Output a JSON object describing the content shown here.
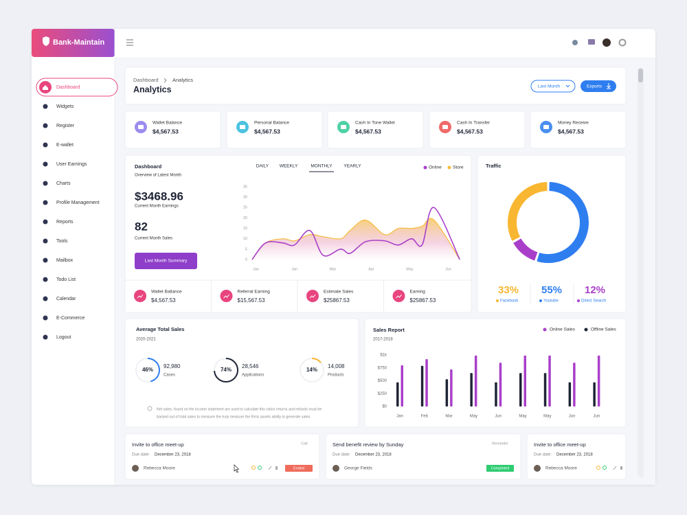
{
  "brand": "Bank-Maintain",
  "sidebar": [
    "Dashboard",
    "Widgets",
    "Register",
    "E-wallet",
    "User Earnings",
    "Charts",
    "Profile Management",
    "Reports",
    "Tools",
    "Mailbox",
    "Todo List",
    "Calendar",
    "E-Commerce",
    "Logout"
  ],
  "breadcrumb": [
    "Dashboard",
    "Analytics"
  ],
  "page_title": "Analytics",
  "buttons": [
    "Last Month",
    "Exports"
  ],
  "stat_cards": [
    {
      "label": "Wallet Balance",
      "value": "$4,567.53"
    },
    {
      "label": "Personal Balance",
      "value": "$4,567.53"
    },
    {
      "label": "Cash In Tone Wallet",
      "value": "$4,567.53"
    },
    {
      "label": "Cash In Transfer",
      "value": "$4,567.53"
    },
    {
      "label": "Money Receive",
      "value": "$4,567.53"
    }
  ],
  "dashboard": {
    "title": "Dashboard",
    "subtitle": "Overview of Latest Month",
    "earnings": "$3468.96",
    "earnings_label": "Current Month Earnings",
    "sales": "82",
    "sales_label": "Current Month Sales",
    "button": "Last Month Summary",
    "tabs": [
      "DAILY",
      "WEEKLY",
      "MONTHLY",
      "YEARLY"
    ],
    "mini_stats": [
      {
        "label": "Wallet Ballance",
        "value": "$4,567.53"
      },
      {
        "label": "Referral Earning",
        "value": "$15,567.53"
      },
      {
        "label": "Estimate Sales",
        "value": "$25867.53"
      },
      {
        "label": "Earning",
        "value": "$25867.53"
      }
    ]
  },
  "chart_data": [
    {
      "type": "line",
      "x": [
        -0.1,
        0.25,
        0.7,
        1.0,
        1.4,
        1.75,
        2.2,
        2.45,
        2.85,
        3.35,
        3.7,
        4.05,
        4.32,
        4.63,
        5.3
      ],
      "xlim": [
        -0.1,
        5.35
      ],
      "xticks": [
        {
          "value": 0,
          "label": "Jan"
        },
        {
          "value": 1,
          "label": "Jan"
        },
        {
          "value": 2,
          "label": "Mar"
        },
        {
          "value": 3,
          "label": "Apr"
        },
        {
          "value": 4,
          "label": "May"
        },
        {
          "value": 5,
          "label": "Jun"
        }
      ],
      "ylim": [
        0,
        35
      ],
      "yticks": [
        0,
        5,
        10,
        15,
        20,
        25,
        30,
        35
      ],
      "series": [
        {
          "name": "Online",
          "color": "#a93fc9",
          "values": [
            0,
            8,
            8,
            7,
            14,
            2,
            5,
            3,
            8.6,
            9,
            7,
            10,
            7,
            25,
            0
          ]
        },
        {
          "name": "Store",
          "color": "#f6bb3a",
          "area": true,
          "values": [
            0,
            8,
            10,
            9,
            12,
            11,
            10,
            14,
            19,
            12,
            15,
            15,
            16,
            19,
            0
          ]
        }
      ]
    },
    {
      "type": "pie",
      "title": "Traffic",
      "categories": [
        "Facebook",
        "Youtube",
        "Direct Search"
      ],
      "values": [
        33,
        55,
        12
      ],
      "value_labels": [
        "33%",
        "55%",
        "12%"
      ],
      "colors": [
        "#f8b631",
        "#2f7ef0",
        "#a93fc9"
      ]
    },
    {
      "type": "bar",
      "title": "Sales Report",
      "subtitle": "2017-2018",
      "categories": [
        "Jan",
        "Feb",
        "Mar",
        "May",
        "Jun",
        "May",
        "May",
        "Jun",
        "Jun"
      ],
      "ylim": [
        0,
        1000
      ],
      "yticks": [
        {
          "value": 0,
          "label": "$0"
        },
        {
          "value": 250,
          "label": "$250"
        },
        {
          "value": 500,
          "label": "$500"
        },
        {
          "value": 750,
          "label": "$750"
        },
        {
          "value": 1000,
          "label": "$1k"
        }
      ],
      "series": [
        {
          "name": "Online Sales",
          "color": "#a93fc9",
          "values": [
            800,
            920,
            720,
            990,
            850,
            990,
            990,
            850,
            990
          ]
        },
        {
          "name": "Offline Sales",
          "color": "#1f2436",
          "values": [
            470,
            790,
            530,
            650,
            470,
            650,
            650,
            470,
            470
          ]
        }
      ]
    }
  ],
  "average_sales": {
    "title": "Average Total Sales",
    "subtitle": "2020-2021",
    "items": [
      {
        "value": 46,
        "value_label": "46%",
        "amount": "92,980",
        "label": "Cases",
        "color": "#2f7ef0"
      },
      {
        "value": 74,
        "value_label": "74%",
        "amount": "28,546",
        "label": "Applications",
        "color": "#1f2436"
      },
      {
        "value": 14,
        "value_label": "14%",
        "amount": "14,008",
        "label": "Products",
        "color": "#f8b631"
      }
    ],
    "note": [
      "Net sales, found on the income statement are used to calculate this ration returns and refunds must be",
      "backed out of total sales to measure the truly measure the firms assets ability to generate sales."
    ]
  },
  "tasks": [
    {
      "title": "Invite to office meet-up",
      "tag": "Call",
      "due_label": "Due date:",
      "due": "December 23, 2018",
      "person": "Rebecca Moore",
      "status": "Ended",
      "status_color": "#ef6b5a"
    },
    {
      "title": "Send benefit review by Sunday",
      "tag": "Reminder",
      "due_label": "Due date:",
      "due": "December 23, 2018",
      "person": "George Fields",
      "status": "Completed",
      "status_color": "#2ecc71"
    },
    {
      "title": "Invite to office meet-up",
      "due_label": "Due date:",
      "due": "December 23, 2018",
      "person": "Rebecca Moore"
    }
  ]
}
